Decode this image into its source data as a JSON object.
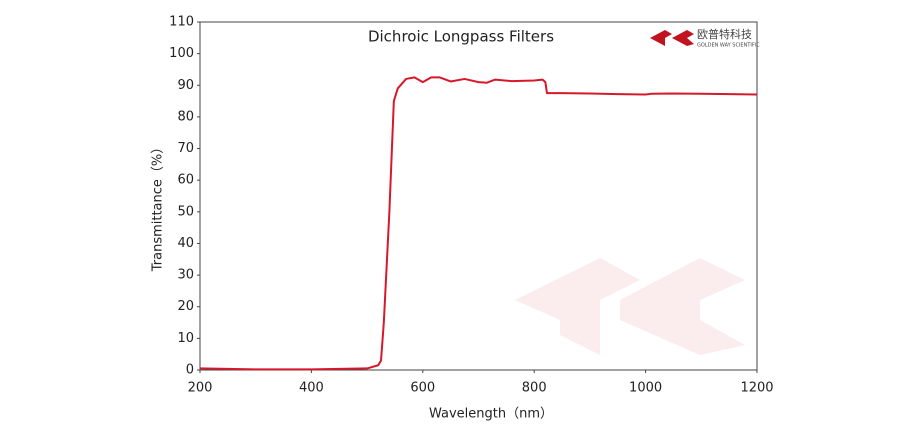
{
  "chart_data": {
    "type": "line",
    "title": "Dichroic Longpass Filters",
    "logo_text": "欧普特科技",
    "logo_subtext": "GOLDEN WAY SCIENTIFIC",
    "x_label": "Wavelength（nm）",
    "y_label": "Transmittance（%）",
    "x": [
      200,
      300,
      400,
      500,
      520,
      525,
      530,
      540,
      548,
      555,
      570,
      585,
      600,
      615,
      630,
      650,
      675,
      700,
      715,
      730,
      760,
      800,
      815,
      820,
      823,
      850,
      900,
      950,
      1000,
      1010,
      1050,
      1100,
      1150,
      1200
    ],
    "values": [
      0.5,
      0.2,
      0.2,
      0.5,
      1.5,
      3,
      15,
      50,
      85,
      89,
      92,
      92.5,
      91,
      92.5,
      92.5,
      91.2,
      92,
      91,
      90.8,
      91.8,
      91.3,
      91.5,
      91.8,
      91,
      87.5,
      87.5,
      87.4,
      87.2,
      87.1,
      87.3,
      87.4,
      87.3,
      87.2,
      87.1
    ],
    "color": "#d7182a",
    "xlim": [
      200,
      1200
    ],
    "xticks": [
      200,
      400,
      600,
      800,
      1000,
      1200
    ],
    "ylim": [
      0,
      110
    ],
    "yticks": [
      0,
      10,
      20,
      30,
      40,
      50,
      60,
      70,
      80,
      90,
      100,
      110
    ],
    "grid": false
  }
}
